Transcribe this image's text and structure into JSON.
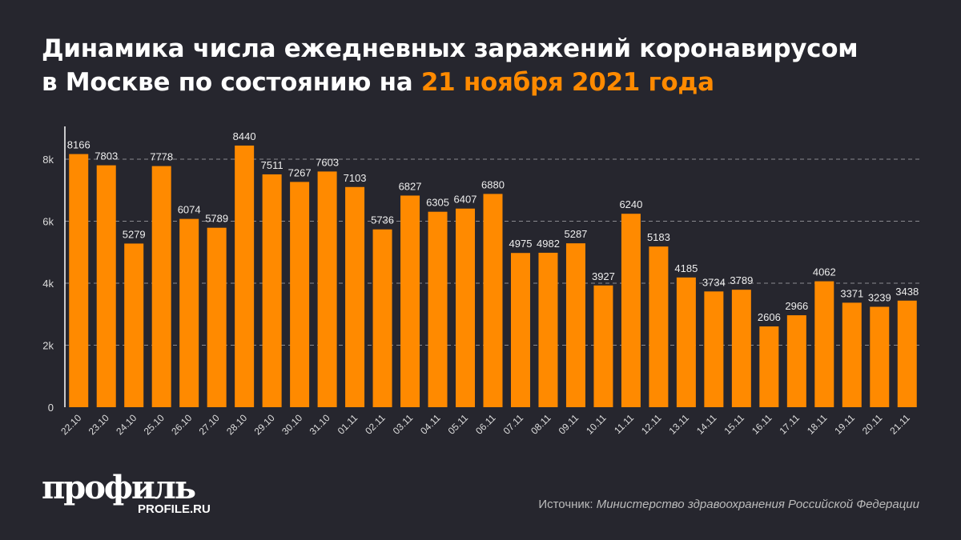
{
  "title": {
    "line1": "Динамика числа ежедневных заражений коронавирусом",
    "line2_prefix": "в Москве по состоянию на ",
    "line2_highlight": "21 ноября 2021 года"
  },
  "colors": {
    "bar": "#ff8a00",
    "background": "#26262e",
    "highlight": "#ff8a00"
  },
  "chart_data": {
    "type": "bar",
    "categories": [
      "22.10",
      "23.10",
      "24.10",
      "25.10",
      "26.10",
      "27.10",
      "28.10",
      "29.10",
      "30.10",
      "31.10",
      "01.11",
      "02.11",
      "03.11",
      "04.11",
      "05.11",
      "06.11",
      "07.11",
      "08.11",
      "09.11",
      "10.11",
      "11.11",
      "12.11",
      "13.11",
      "14.11",
      "15.11",
      "16.11",
      "17.11",
      "18.11",
      "19.11",
      "20.11",
      "21.11"
    ],
    "values": [
      8166,
      7803,
      5279,
      7778,
      6074,
      5789,
      8440,
      7511,
      7267,
      7603,
      7103,
      5736,
      6827,
      6305,
      6407,
      6880,
      4975,
      4982,
      5287,
      3927,
      6240,
      5183,
      4185,
      3734,
      3789,
      2606,
      2966,
      4062,
      3371,
      3239,
      3438
    ],
    "yticks": [
      0,
      2000,
      4000,
      6000,
      8000
    ],
    "ytick_labels": [
      "0",
      "2k",
      "4k",
      "6k",
      "8k"
    ],
    "ylim": [
      0,
      8000
    ],
    "grid": true
  },
  "logo": {
    "name": "профиль",
    "site": "PROFILE.RU"
  },
  "source": {
    "label": "Источник:",
    "text": "Министерство здравоохранения Российской Федерации"
  }
}
